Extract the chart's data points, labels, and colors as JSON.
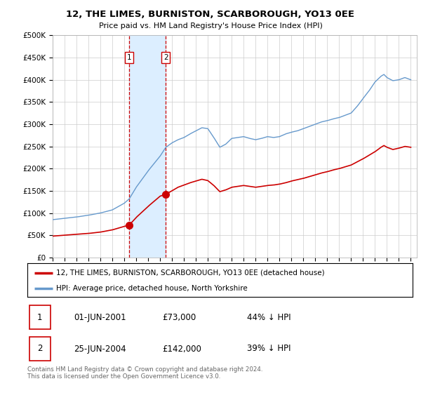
{
  "title": "12, THE LIMES, BURNISTON, SCARBOROUGH, YO13 0EE",
  "subtitle": "Price paid vs. HM Land Registry's House Price Index (HPI)",
  "ylabel_ticks": [
    "£0",
    "£50K",
    "£100K",
    "£150K",
    "£200K",
    "£250K",
    "£300K",
    "£350K",
    "£400K",
    "£450K",
    "£500K"
  ],
  "ylim": [
    0,
    500000
  ],
  "xlim_start": 1995.0,
  "xlim_end": 2025.5,
  "sale1_date": 2001.42,
  "sale1_price": 73000,
  "sale1_label": "1",
  "sale2_date": 2004.48,
  "sale2_price": 142000,
  "sale2_label": "2",
  "highlight_color": "#dceeff",
  "sale_line_color": "#cc0000",
  "hpi_line_color": "#6699cc",
  "background_color": "#ffffff",
  "grid_color": "#cccccc",
  "legend_label_sale": "12, THE LIMES, BURNISTON, SCARBOROUGH, YO13 0EE (detached house)",
  "legend_label_hpi": "HPI: Average price, detached house, North Yorkshire",
  "table_row1": [
    "1",
    "01-JUN-2001",
    "£73,000",
    "44% ↓ HPI"
  ],
  "table_row2": [
    "2",
    "25-JUN-2004",
    "£142,000",
    "39% ↓ HPI"
  ],
  "footer": "Contains HM Land Registry data © Crown copyright and database right 2024.\nThis data is licensed under the Open Government Licence v3.0."
}
